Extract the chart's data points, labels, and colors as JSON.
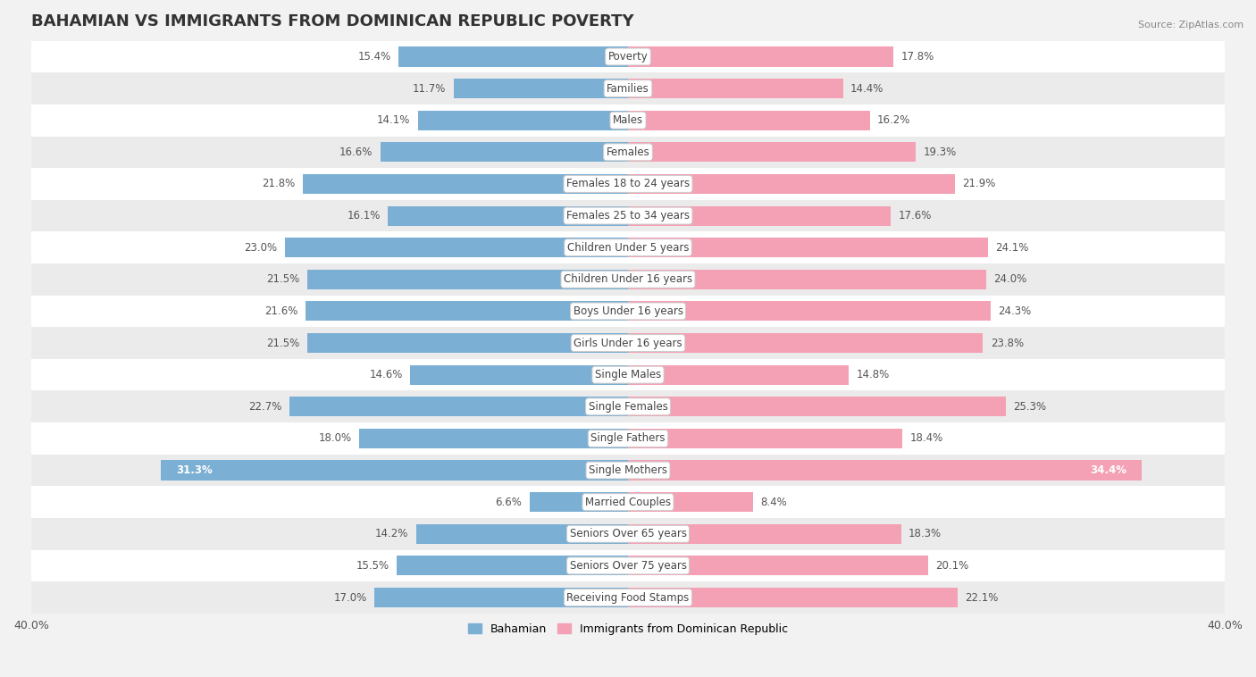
{
  "title": "BAHAMIAN VS IMMIGRANTS FROM DOMINICAN REPUBLIC POVERTY",
  "source": "Source: ZipAtlas.com",
  "categories": [
    "Poverty",
    "Families",
    "Males",
    "Females",
    "Females 18 to 24 years",
    "Females 25 to 34 years",
    "Children Under 5 years",
    "Children Under 16 years",
    "Boys Under 16 years",
    "Girls Under 16 years",
    "Single Males",
    "Single Females",
    "Single Fathers",
    "Single Mothers",
    "Married Couples",
    "Seniors Over 65 years",
    "Seniors Over 75 years",
    "Receiving Food Stamps"
  ],
  "bahamian": [
    15.4,
    11.7,
    14.1,
    16.6,
    21.8,
    16.1,
    23.0,
    21.5,
    21.6,
    21.5,
    14.6,
    22.7,
    18.0,
    31.3,
    6.6,
    14.2,
    15.5,
    17.0
  ],
  "dominican": [
    17.8,
    14.4,
    16.2,
    19.3,
    21.9,
    17.6,
    24.1,
    24.0,
    24.3,
    23.8,
    14.8,
    25.3,
    18.4,
    34.4,
    8.4,
    18.3,
    20.1,
    22.1
  ],
  "x_max": 40.0,
  "bar_height": 0.62,
  "blue_color": "#7BAFD4",
  "pink_color": "#F4A0B5",
  "row_bg_even": "#FFFFFF",
  "row_bg_odd": "#EBEBEB",
  "fig_bg": "#F2F2F2",
  "title_fontsize": 13,
  "label_fontsize": 8.5,
  "value_fontsize": 8.5,
  "legend_label_blue": "Bahamian",
  "legend_label_pink": "Immigrants from Dominican Republic"
}
